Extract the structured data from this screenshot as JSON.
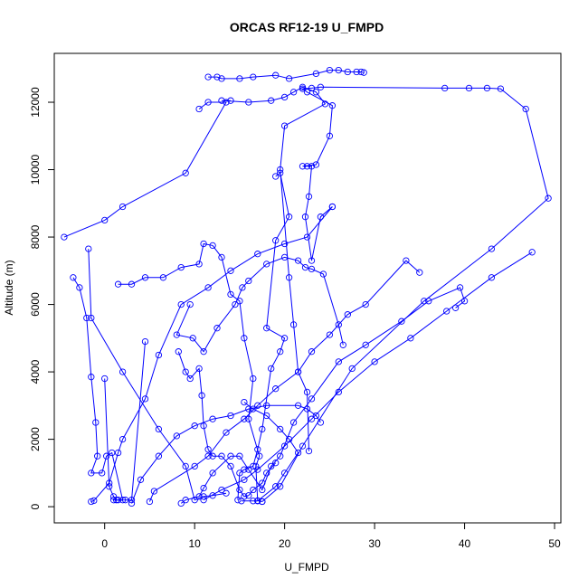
{
  "chart_data": {
    "type": "scatter",
    "title": "ORCAS RF12-19 U_FMPD",
    "xlabel": "U_FMPD",
    "ylabel": "Altitude (m)",
    "xlim": [
      -5.6,
      50.7
    ],
    "ylim": [
      -480,
      13450
    ],
    "x_ticks": [
      0,
      10,
      20,
      30,
      40,
      50
    ],
    "y_ticks": [
      0,
      2000,
      4000,
      6000,
      8000,
      10000,
      12000
    ],
    "x_tick_labels": [
      "0",
      "10",
      "20",
      "30",
      "40",
      "50"
    ],
    "y_tick_labels": [
      "0",
      "2000",
      "4000",
      "6000",
      "8000",
      "10000",
      "12000"
    ],
    "grid": false,
    "legend": "none",
    "line_color": "#0000ff",
    "marker": "open-circle",
    "series": [
      {
        "values": [
          [
            -1.5,
            150
          ],
          [
            -1.2,
            180
          ],
          [
            0.5,
            700
          ],
          [
            1.5,
            1600
          ],
          [
            2.0,
            2000
          ],
          [
            4.5,
            3200
          ],
          [
            6.0,
            4500
          ],
          [
            8.5,
            6000
          ],
          [
            11.5,
            6500
          ],
          [
            14.0,
            7000
          ],
          [
            17.0,
            7500
          ],
          [
            20.0,
            7800
          ],
          [
            22.5,
            8000
          ],
          [
            25.3,
            8900
          ]
        ]
      },
      {
        "values": [
          [
            25.3,
            8900
          ],
          [
            24.0,
            8600
          ],
          [
            23.0,
            7300
          ],
          [
            22.3,
            8600
          ],
          [
            22.7,
            9200
          ],
          [
            23.0,
            10100
          ],
          [
            22.5,
            10100
          ],
          [
            22.0,
            10100
          ],
          [
            23.5,
            10150
          ],
          [
            25.0,
            11000
          ],
          [
            25.3,
            11900
          ],
          [
            22.5,
            12300
          ],
          [
            22.0,
            12400
          ],
          [
            23.0,
            12420
          ],
          [
            24.0,
            12450
          ],
          [
            37.8,
            12420
          ],
          [
            40.5,
            12420
          ],
          [
            42.5,
            12420
          ],
          [
            44.0,
            12400
          ],
          [
            46.8,
            11800
          ],
          [
            49.3,
            9150
          ],
          [
            43.0,
            7650
          ],
          [
            35.5,
            6100
          ],
          [
            27.5,
            4100
          ],
          [
            22.0,
            1800
          ],
          [
            19.5,
            600
          ],
          [
            17.5,
            150
          ]
        ]
      },
      {
        "values": [
          [
            17.5,
            150
          ],
          [
            17.0,
            180
          ],
          [
            16.8,
            1200
          ],
          [
            17.2,
            1500
          ],
          [
            16.0,
            2600
          ],
          [
            16.5,
            3800
          ],
          [
            15.5,
            5000
          ],
          [
            15.0,
            6100
          ],
          [
            14.0,
            6300
          ],
          [
            13.0,
            7400
          ],
          [
            12.0,
            7750
          ],
          [
            11.0,
            7800
          ],
          [
            10.5,
            7200
          ],
          [
            8.5,
            7100
          ],
          [
            6.5,
            6800
          ],
          [
            4.5,
            6800
          ],
          [
            3.0,
            6600
          ],
          [
            1.5,
            6600
          ]
        ]
      },
      {
        "values": [
          [
            -4.5,
            8000
          ],
          [
            0.0,
            8500
          ],
          [
            2.0,
            8900
          ],
          [
            9.0,
            9900
          ],
          [
            13.5,
            12000
          ],
          [
            11.5,
            12000
          ],
          [
            10.5,
            11800
          ]
        ]
      },
      {
        "values": [
          [
            11.5,
            12750
          ],
          [
            12.5,
            12750
          ],
          [
            13.0,
            12700
          ],
          [
            15.0,
            12700
          ],
          [
            16.5,
            12750
          ],
          [
            19.0,
            12800
          ],
          [
            20.5,
            12700
          ],
          [
            23.5,
            12850
          ],
          [
            25.0,
            12950
          ],
          [
            26.0,
            12950
          ],
          [
            27.0,
            12900
          ],
          [
            28.0,
            12900
          ],
          [
            28.5,
            12900
          ],
          [
            28.8,
            12880
          ]
        ]
      },
      {
        "values": [
          [
            -3.5,
            6800
          ],
          [
            -2.8,
            6500
          ],
          [
            -2.0,
            5600
          ],
          [
            -1.5,
            3850
          ],
          [
            -1.0,
            2500
          ],
          [
            -0.8,
            1500
          ],
          [
            -1.5,
            1000
          ],
          [
            -0.3,
            1000
          ],
          [
            0.2,
            1500
          ],
          [
            0.8,
            1600
          ],
          [
            2.0,
            200
          ],
          [
            1.5,
            200
          ],
          [
            1.0,
            200
          ]
        ]
      },
      {
        "values": [
          [
            -1.8,
            7650
          ],
          [
            -1.5,
            5600
          ],
          [
            2.0,
            4000
          ],
          [
            6.0,
            2300
          ],
          [
            9.0,
            1200
          ],
          [
            10.0,
            200
          ],
          [
            11.0,
            300
          ],
          [
            12.0,
            330
          ],
          [
            13.5,
            400
          ]
        ]
      },
      {
        "values": [
          [
            4.5,
            4900
          ],
          [
            3.0,
            200
          ],
          [
            2.3,
            200
          ],
          [
            1.3,
            200
          ],
          [
            1.0,
            300
          ],
          [
            0.5,
            600
          ],
          [
            0.0,
            3800
          ]
        ]
      },
      {
        "values": [
          [
            5.0,
            150
          ],
          [
            5.5,
            460
          ],
          [
            10.0,
            1200
          ],
          [
            11.5,
            1500
          ],
          [
            13.5,
            2200
          ],
          [
            15.5,
            2600
          ],
          [
            17.0,
            3000
          ],
          [
            19.0,
            3500
          ],
          [
            21.5,
            4000
          ],
          [
            23.0,
            4600
          ],
          [
            25.0,
            5100
          ],
          [
            27.0,
            5700
          ],
          [
            29.0,
            6000
          ],
          [
            33.5,
            7300
          ],
          [
            35.0,
            6950
          ]
        ]
      },
      {
        "values": [
          [
            8.5,
            100
          ],
          [
            9.0,
            200
          ],
          [
            10.5,
            300
          ],
          [
            11.0,
            550
          ],
          [
            12.0,
            1000
          ],
          [
            14.0,
            1500
          ],
          [
            15.0,
            1500
          ],
          [
            16.0,
            1100
          ],
          [
            17.5,
            500
          ],
          [
            18.5,
            1200
          ],
          [
            19.5,
            1500
          ],
          [
            21.0,
            2500
          ],
          [
            23.0,
            3200
          ],
          [
            26.0,
            4300
          ],
          [
            29.0,
            4800
          ],
          [
            33.0,
            5500
          ],
          [
            36.0,
            6100
          ],
          [
            39.5,
            6500
          ],
          [
            40.0,
            6100
          ],
          [
            39.0,
            5900
          ]
        ]
      },
      {
        "values": [
          [
            11.0,
            200
          ],
          [
            13.0,
            500
          ],
          [
            15.5,
            800
          ],
          [
            17.0,
            1100
          ],
          [
            20.0,
            1800
          ],
          [
            23.0,
            2600
          ],
          [
            26.0,
            3400
          ],
          [
            30.0,
            4300
          ],
          [
            34.0,
            5000
          ],
          [
            38.0,
            5800
          ],
          [
            43.0,
            6800
          ],
          [
            47.5,
            7550
          ]
        ]
      },
      {
        "values": [
          [
            8.2,
            4600
          ],
          [
            9.0,
            4000
          ],
          [
            9.5,
            3800
          ],
          [
            10.5,
            4100
          ],
          [
            10.8,
            3300
          ],
          [
            11.0,
            2400
          ],
          [
            11.5,
            1700
          ],
          [
            12.0,
            1500
          ],
          [
            13.0,
            1500
          ],
          [
            14.0,
            1200
          ],
          [
            15.0,
            500
          ],
          [
            15.5,
            300
          ],
          [
            16.0,
            330
          ],
          [
            16.5,
            500
          ],
          [
            17.5,
            700
          ],
          [
            18.0,
            1000
          ],
          [
            19.0,
            1300
          ]
        ]
      },
      {
        "values": [
          [
            9.5,
            6000
          ],
          [
            8.0,
            5100
          ],
          [
            9.8,
            5000
          ],
          [
            11.0,
            4600
          ],
          [
            12.5,
            5300
          ],
          [
            14.5,
            6000
          ],
          [
            15.3,
            6500
          ],
          [
            16.0,
            6700
          ],
          [
            18.0,
            7200
          ],
          [
            20.0,
            7400
          ],
          [
            21.5,
            7300
          ],
          [
            22.3,
            7100
          ],
          [
            23.0,
            7050
          ],
          [
            24.3,
            6900
          ],
          [
            26.0,
            5400
          ],
          [
            26.5,
            4800
          ]
        ]
      },
      {
        "values": [
          [
            19.0,
            9800
          ],
          [
            19.5,
            9900
          ],
          [
            20.5,
            8600
          ],
          [
            19.0,
            7900
          ],
          [
            18.0,
            5300
          ],
          [
            20.0,
            5000
          ],
          [
            19.5,
            4600
          ],
          [
            18.5,
            4100
          ],
          [
            17.5,
            2300
          ],
          [
            17.0,
            1700
          ],
          [
            16.5,
            1200
          ],
          [
            15.5,
            1100
          ],
          [
            15.0,
            1000
          ],
          [
            14.8,
            200
          ]
        ]
      },
      {
        "values": [
          [
            14.0,
            12050
          ],
          [
            13.0,
            12050
          ],
          [
            16.0,
            12000
          ],
          [
            18.5,
            12050
          ],
          [
            20.0,
            12150
          ],
          [
            21.0,
            12300
          ],
          [
            22.0,
            12450
          ],
          [
            23.5,
            12300
          ],
          [
            24.5,
            11950
          ],
          [
            20.0,
            11300
          ],
          [
            19.5,
            10000
          ],
          [
            20.5,
            6800
          ],
          [
            21.0,
            5400
          ],
          [
            21.5,
            4000
          ],
          [
            22.5,
            3400
          ],
          [
            22.7,
            1650
          ]
        ]
      },
      {
        "values": [
          [
            15.5,
            3100
          ],
          [
            16.5,
            2900
          ],
          [
            18.0,
            2700
          ],
          [
            19.5,
            2300
          ],
          [
            20.5,
            2000
          ],
          [
            21.5,
            1600
          ],
          [
            20.0,
            1000
          ],
          [
            19.0,
            600
          ],
          [
            17.0,
            170
          ],
          [
            16.5,
            170
          ],
          [
            15.2,
            170
          ]
        ]
      },
      {
        "values": [
          [
            3.0,
            100
          ],
          [
            4.0,
            800
          ],
          [
            6.0,
            1500
          ],
          [
            8.0,
            2100
          ],
          [
            10.0,
            2400
          ],
          [
            12.0,
            2600
          ],
          [
            14.0,
            2700
          ],
          [
            16.0,
            2900
          ],
          [
            18.0,
            3000
          ],
          [
            21.5,
            3000
          ],
          [
            22.5,
            2900
          ],
          [
            23.5,
            2700
          ],
          [
            24.0,
            2500
          ]
        ]
      }
    ]
  }
}
